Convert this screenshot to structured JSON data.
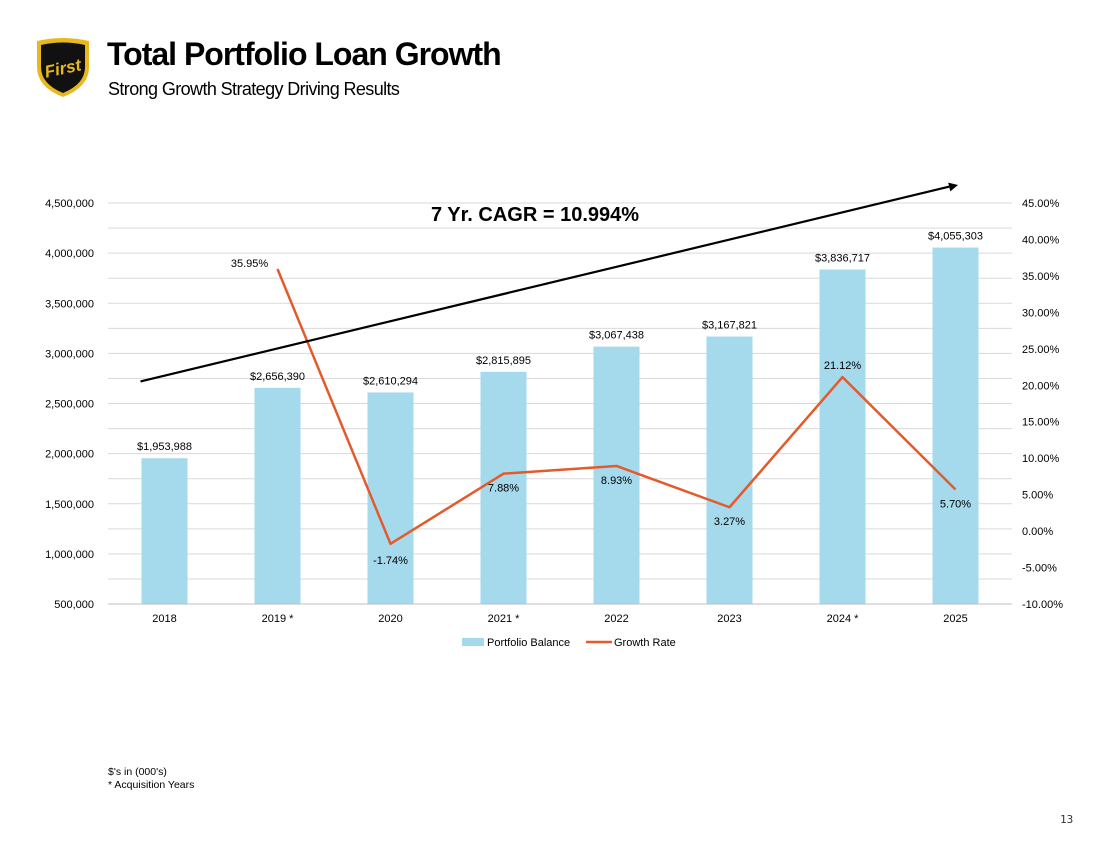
{
  "header": {
    "logo_text": "First",
    "title": "Total Portfolio Loan Growth",
    "subtitle": "Strong Growth Strategy Driving Results"
  },
  "colors": {
    "bar": "#a5d9ec",
    "line": "#e45b2b",
    "trend": "#000000",
    "grid": "#d9d9d9",
    "logo_gold": "#e8b81e"
  },
  "chart_data": {
    "type": "bar",
    "categories": [
      "2018",
      "2019 *",
      "2020",
      "2021 *",
      "2022",
      "2023",
      "2024 *",
      "2025"
    ],
    "series": [
      {
        "name": "Portfolio Balance",
        "kind": "bar",
        "axis": "left",
        "values": [
          1953988,
          2656390,
          2610294,
          2815895,
          3067438,
          3167821,
          3836717,
          4055303
        ],
        "labels": [
          "$1,953,988",
          "$2,656,390",
          "$2,610,294",
          "$2,815,895",
          "$3,067,438",
          "$3,167,821",
          "$3,836,717",
          "$4,055,303"
        ]
      },
      {
        "name": "Growth Rate",
        "kind": "line",
        "axis": "right",
        "values": [
          null,
          35.95,
          -1.74,
          7.88,
          8.93,
          3.27,
          21.12,
          5.7
        ],
        "labels": [
          null,
          "35.95%",
          "-1.74%",
          "7.88%",
          "8.93%",
          "3.27%",
          "21.12%",
          "5.70%"
        ]
      }
    ],
    "y_left": {
      "ylim": [
        500000,
        4500000
      ],
      "ticks": [
        500000,
        1000000,
        1500000,
        2000000,
        2500000,
        3000000,
        3500000,
        4000000,
        4500000
      ],
      "tick_labels": [
        "500,000",
        "1,000,000",
        "1,500,000",
        "2,000,000",
        "2,500,000",
        "3,000,000",
        "3,500,000",
        "4,000,000",
        "4,500,000"
      ]
    },
    "y_right": {
      "ylim": [
        -10,
        45
      ],
      "ticks": [
        -10,
        -5,
        0,
        5,
        10,
        15,
        20,
        25,
        30,
        35,
        40,
        45
      ],
      "tick_labels": [
        "-10.00%",
        "-5.00%",
        "0.00%",
        "5.00%",
        "10.00%",
        "15.00%",
        "20.00%",
        "25.00%",
        "30.00%",
        "35.00%",
        "40.00%",
        "45.00%"
      ]
    },
    "trend_arrow": {
      "label": "7 Yr. CAGR = 10.994%",
      "start_value": 2720000,
      "end_value": 4680000
    },
    "legend": [
      "Portfolio Balance",
      "Growth Rate"
    ],
    "legend_position": "bottom"
  },
  "footnotes": {
    "units": "$'s in (000's)",
    "acquisition": "* Acquisition Years"
  },
  "page_number": "13"
}
